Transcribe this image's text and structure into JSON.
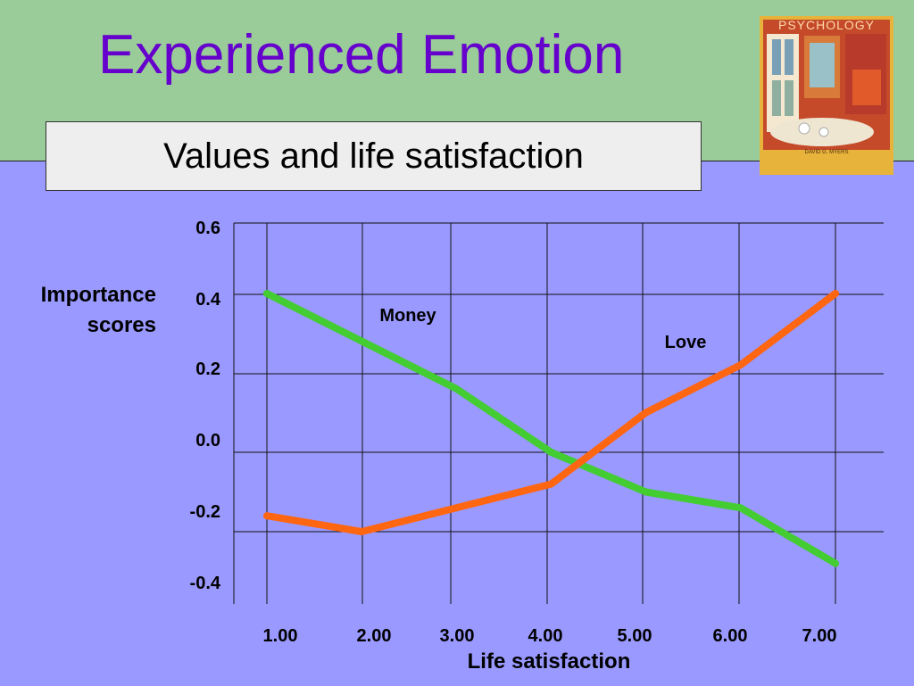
{
  "slide": {
    "title": "Experienced Emotion",
    "subtitle": "Values and life satisfaction",
    "book_cover_title": "PSYCHOLOGY",
    "book_cover_author": "DAVID G. MYERS"
  },
  "colors": {
    "top_band": "#99cc99",
    "body": "#9999ff",
    "title": "#6600cc",
    "money_line": "#44cc33",
    "love_line": "#ff6611"
  },
  "chart_data": {
    "type": "line",
    "xlabel": "Life satisfaction",
    "ylabel": "Importance scores",
    "x": [
      1,
      2,
      3,
      4,
      5,
      6,
      7
    ],
    "x_tick_labels": [
      "1.00",
      "2.00",
      "3.00",
      "4.00",
      "5.00",
      "6.00",
      "7.00"
    ],
    "y_tick_labels": [
      "0.6",
      "0.4",
      "0.2",
      "0.0",
      "-0.2",
      "-0.4"
    ],
    "y_ticks": [
      0.6,
      0.4,
      0.2,
      0.0,
      -0.2,
      -0.4
    ],
    "ylim": [
      -0.4,
      0.6
    ],
    "grid": true,
    "series": [
      {
        "name": "Money",
        "values": [
          0.4,
          0.28,
          0.16,
          0.0,
          -0.1,
          -0.14,
          -0.28
        ]
      },
      {
        "name": "Love",
        "values": [
          -0.16,
          -0.2,
          -0.14,
          -0.08,
          0.1,
          0.22,
          0.4
        ]
      }
    ]
  }
}
